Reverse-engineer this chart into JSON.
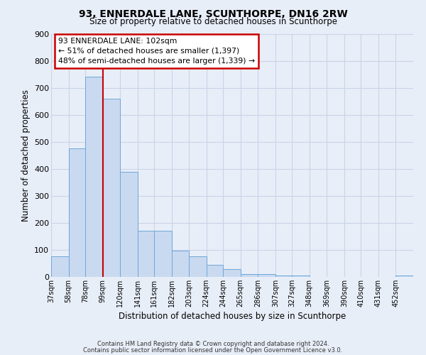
{
  "title": "93, ENNERDALE LANE, SCUNTHORPE, DN16 2RW",
  "subtitle": "Size of property relative to detached houses in Scunthorpe",
  "xlabel": "Distribution of detached houses by size in Scunthorpe",
  "ylabel": "Number of detached properties",
  "footer_line1": "Contains HM Land Registry data © Crown copyright and database right 2024.",
  "footer_line2": "Contains public sector information licensed under the Open Government Licence v3.0.",
  "bar_labels": [
    "37sqm",
    "58sqm",
    "78sqm",
    "99sqm",
    "120sqm",
    "141sqm",
    "161sqm",
    "182sqm",
    "203sqm",
    "224sqm",
    "244sqm",
    "265sqm",
    "286sqm",
    "307sqm",
    "327sqm",
    "348sqm",
    "369sqm",
    "390sqm",
    "410sqm",
    "431sqm",
    "452sqm"
  ],
  "bar_values": [
    75,
    475,
    740,
    660,
    390,
    170,
    170,
    97,
    75,
    45,
    30,
    10,
    10,
    5,
    5,
    0,
    0,
    0,
    0,
    0,
    5
  ],
  "bar_color": "#c9d9f0",
  "bar_edge_color": "#6fa8d8",
  "annotation_line1": "93 ENNERDALE LANE: 102sqm",
  "annotation_line2": "← 51% of detached houses are smaller (1,397)",
  "annotation_line3": "48% of semi-detached houses are larger (1,339) →",
  "annotation_box_color": "#ffffff",
  "annotation_box_edge_color": "#cc0000",
  "vline_color": "#cc0000",
  "ylim": [
    0,
    900
  ],
  "yticks": [
    0,
    100,
    200,
    300,
    400,
    500,
    600,
    700,
    800,
    900
  ],
  "grid_color": "#c8d4e8",
  "background_color": "#e8eef8",
  "bin_edges": [
    37,
    58,
    78,
    99,
    120,
    141,
    161,
    182,
    203,
    224,
    244,
    265,
    286,
    307,
    327,
    348,
    369,
    390,
    410,
    431,
    452,
    473
  ]
}
